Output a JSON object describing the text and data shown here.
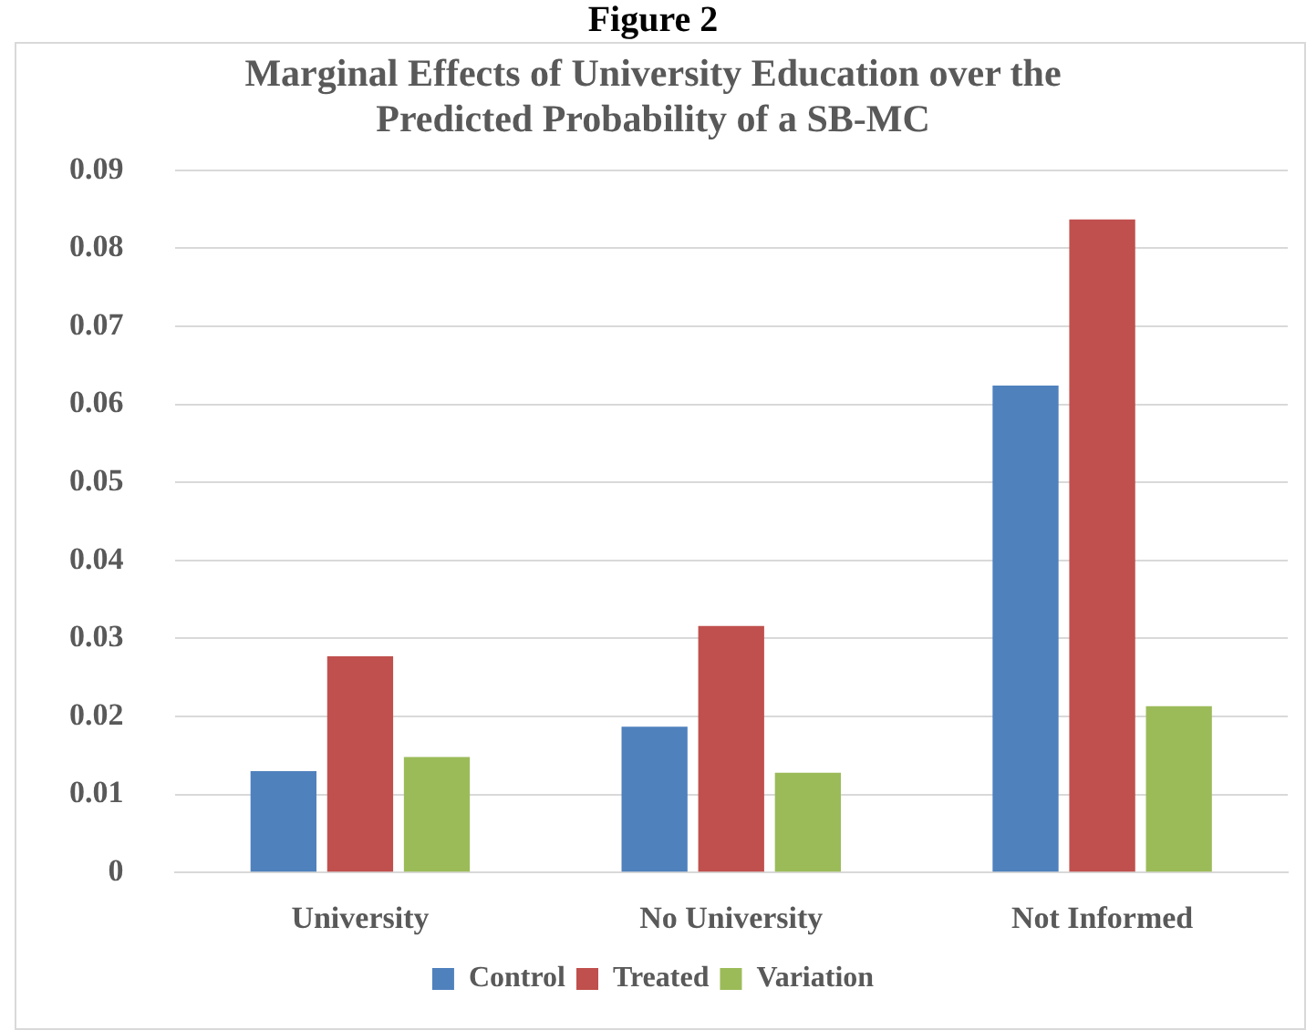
{
  "chart_data": {
    "type": "bar",
    "title": [
      "Marginal Effects of University Education over the",
      "Predicted Probability of a SB-MC"
    ],
    "annotations": [
      "Figure 2"
    ],
    "categories": [
      "University",
      "No University",
      "Not Informed"
    ],
    "series": [
      {
        "name": "Control",
        "color": "#4f81bd",
        "values": [
          0.013,
          0.0187,
          0.0624
        ]
      },
      {
        "name": "Treated",
        "color": "#c0504d",
        "values": [
          0.0277,
          0.0316,
          0.0837
        ]
      },
      {
        "name": "Variation",
        "color": "#9bbb59",
        "values": [
          0.0148,
          0.0128,
          0.0213
        ]
      }
    ],
    "ylim": [
      0,
      0.09
    ],
    "yticks": [
      0,
      0.01,
      0.02,
      0.03,
      0.04,
      0.05,
      0.06,
      0.07,
      0.08,
      0.09
    ],
    "grid": "y",
    "legend": "bottom"
  }
}
